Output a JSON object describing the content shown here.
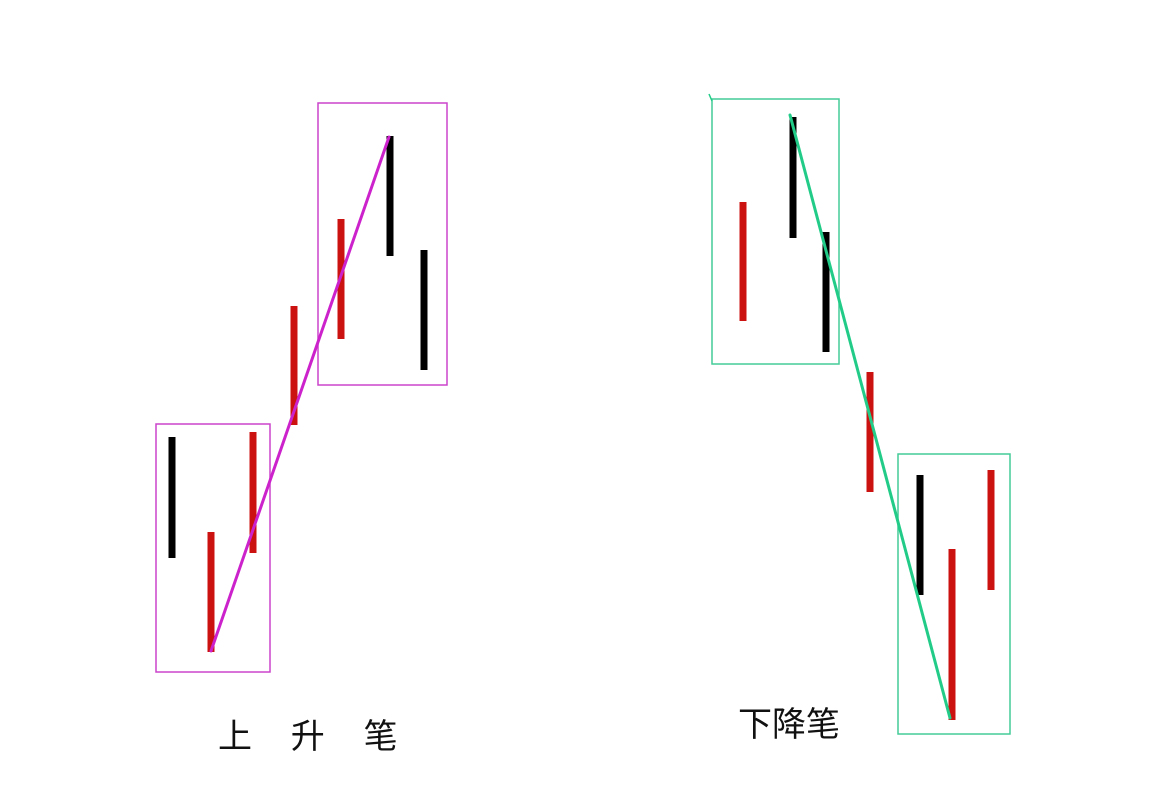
{
  "colors": {
    "up_candle": "#cc1111",
    "down_candle": "#000000",
    "up_stroke_line": "#cc22cc",
    "up_stroke_box": "#cc44cc",
    "down_stroke_line": "#22cc88",
    "down_stroke_box": "#44cc99",
    "background": "#ffffff"
  },
  "diagrams": [
    {
      "caption": "上 升 笔",
      "direction": "up",
      "bars": [
        {
          "color": "down_candle"
        },
        {
          "color": "up_candle"
        },
        {
          "color": "up_candle"
        },
        {
          "color": "up_candle"
        },
        {
          "color": "up_candle"
        },
        {
          "color": "down_candle"
        },
        {
          "color": "down_candle"
        }
      ]
    },
    {
      "caption": "下降笔",
      "direction": "down",
      "bars": [
        {
          "color": "up_candle"
        },
        {
          "color": "down_candle"
        },
        {
          "color": "down_candle"
        },
        {
          "color": "up_candle"
        },
        {
          "color": "down_candle"
        },
        {
          "color": "up_candle"
        },
        {
          "color": "up_candle"
        }
      ]
    }
  ]
}
